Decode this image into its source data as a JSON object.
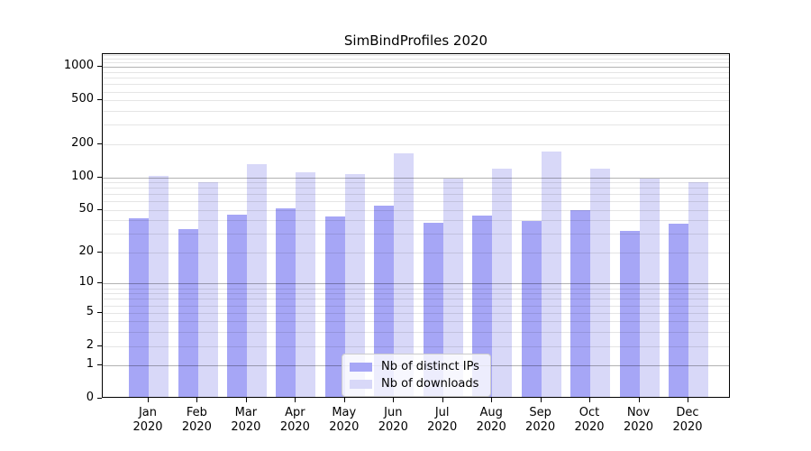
{
  "chart_data": {
    "type": "bar",
    "title": "SimBindProfiles 2020",
    "categories": [
      "Jan",
      "Feb",
      "Mar",
      "Apr",
      "May",
      "Jun",
      "Jul",
      "Aug",
      "Sep",
      "Oct",
      "Nov",
      "Dec"
    ],
    "x_tick_year": "2020",
    "series": [
      {
        "name": "Nb of distinct IPs",
        "color": "#a6a6f6",
        "values": [
          40,
          32,
          44,
          50,
          42,
          53,
          37,
          43,
          38,
          48,
          31,
          36
        ]
      },
      {
        "name": "Nb of downloads",
        "color": "#d8d8f8",
        "values": [
          100,
          87,
          127,
          107,
          102,
          160,
          93,
          116,
          166,
          116,
          94,
          87
        ]
      }
    ],
    "y_axis": {
      "scale": "log1p",
      "ylim": [
        0,
        1312
      ],
      "tick_values": [
        0,
        1,
        2,
        5,
        10,
        20,
        50,
        100,
        200,
        500,
        1000
      ],
      "tick_labels": [
        "0",
        "1",
        "2",
        "5",
        "10",
        "20",
        "50",
        "100",
        "200",
        "500",
        "1000"
      ],
      "major_gridlines": [
        1,
        10,
        100,
        1000
      ],
      "minor_gridlines": [
        2,
        3,
        4,
        5,
        6,
        7,
        8,
        9,
        20,
        30,
        40,
        50,
        60,
        70,
        80,
        90,
        200,
        300,
        400,
        500,
        600,
        700,
        800,
        900,
        1100,
        1200,
        1300
      ]
    },
    "grid": true,
    "legend_position": "lower-center"
  },
  "colors": {
    "background": "#ffffff",
    "axis": "#000000",
    "bar_dark": "#a6a6f6",
    "bar_light": "#d8d8f8",
    "legend_border": "#cccccc"
  }
}
